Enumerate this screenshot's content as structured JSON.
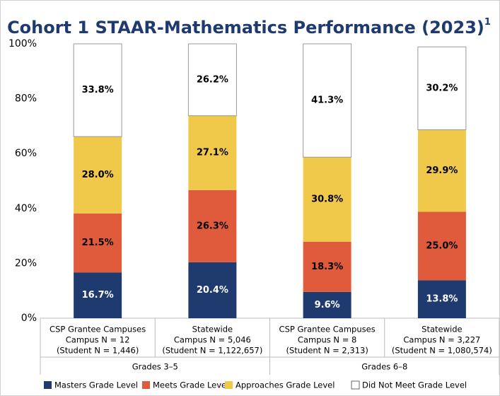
{
  "chart_data": {
    "type": "stacked_bar",
    "title": "Cohort 1 STAAR-Mathematics Performance (2023)",
    "title_superscript": "1",
    "categories": [
      [
        "CSP Grantee Campuses",
        "Campus N = 12",
        "(Student N = 1,446)"
      ],
      [
        "Statewide",
        "Campus N = 5,046",
        "(Student N = 1,122,657)"
      ],
      [
        "CSP Grantee Campuses",
        "Campus N = 8",
        "(Student N = 2,313)"
      ],
      [
        "Statewide",
        "Campus N = 3,227",
        "(Student N = 1,080,574)"
      ]
    ],
    "groups": [
      {
        "label": "Grades 3–5",
        "size": 2
      },
      {
        "label": "Grades 6–8",
        "size": 2
      }
    ],
    "series": [
      {
        "name": "Masters Grade Level",
        "color": "#1f3a6e",
        "label_color": "#ffffff",
        "values": [
          16.7,
          20.4,
          9.6,
          13.8
        ],
        "value_labels": [
          "16.7%",
          "20.4%",
          "9.6%",
          "13.8%"
        ]
      },
      {
        "name": "Meets Grade Level",
        "color": "#e05a3c",
        "label_color": "#000000",
        "values": [
          21.5,
          26.3,
          18.3,
          25.0
        ],
        "value_labels": [
          "21.5%",
          "26.3%",
          "18.3%",
          "25.0%"
        ]
      },
      {
        "name": "Approaches Grade Level",
        "color": "#f0c84a",
        "label_color": "#000000",
        "values": [
          28.0,
          27.1,
          30.8,
          29.9
        ],
        "value_labels": [
          "28.0%",
          "27.1%",
          "30.8%",
          "29.9%"
        ]
      },
      {
        "name": "Did Not Meet Grade Level",
        "color": "#ffffff",
        "label_color": "#000000",
        "values": [
          33.8,
          26.2,
          41.3,
          30.2
        ],
        "value_labels": [
          "33.8%",
          "26.2%",
          "41.3%",
          "30.2%"
        ]
      }
    ],
    "ylim": [
      0,
      100
    ],
    "yticks": [
      {
        "value": 0,
        "label": "0%"
      },
      {
        "value": 20,
        "label": "20%"
      },
      {
        "value": 40,
        "label": "40%"
      },
      {
        "value": 60,
        "label": "60%"
      },
      {
        "value": 80,
        "label": "80%"
      },
      {
        "value": 100,
        "label": "100%"
      }
    ],
    "grid": false
  }
}
